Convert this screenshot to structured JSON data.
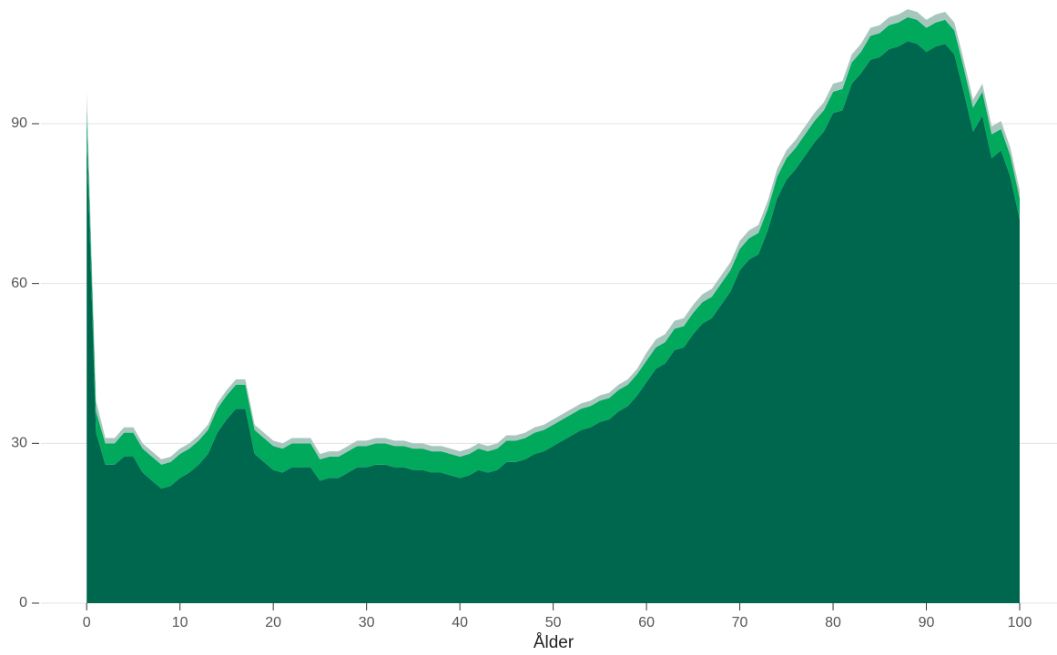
{
  "chart_data": {
    "type": "stacked_area",
    "x_label": "Ålder",
    "x": [
      0,
      1,
      2,
      3,
      4,
      5,
      6,
      7,
      8,
      9,
      10,
      11,
      12,
      13,
      14,
      15,
      16,
      17,
      18,
      19,
      20,
      21,
      22,
      23,
      24,
      25,
      26,
      27,
      28,
      29,
      30,
      31,
      32,
      33,
      34,
      35,
      36,
      37,
      38,
      39,
      40,
      41,
      42,
      43,
      44,
      45,
      46,
      47,
      48,
      49,
      50,
      51,
      52,
      53,
      54,
      55,
      56,
      57,
      58,
      59,
      60,
      61,
      62,
      63,
      64,
      65,
      66,
      67,
      68,
      69,
      70,
      71,
      72,
      73,
      74,
      75,
      76,
      77,
      78,
      79,
      80,
      81,
      82,
      83,
      84,
      85,
      86,
      87,
      88,
      89,
      90,
      91,
      92,
      93,
      94,
      95,
      96,
      97,
      98,
      99,
      100
    ],
    "series": [
      {
        "color": "#00674f",
        "values": [
          88,
          32,
          26,
          26,
          27.5,
          27.5,
          24.5,
          23,
          21.5,
          22,
          23.5,
          24.5,
          26,
          28,
          32,
          34.5,
          36.5,
          36.5,
          28,
          26.5,
          25,
          24.5,
          25.5,
          25.5,
          25.5,
          23,
          23.5,
          23.5,
          24.5,
          25.5,
          25.5,
          26,
          26,
          25.5,
          25.5,
          25,
          25,
          24.5,
          24.5,
          24,
          23.5,
          24,
          25,
          24.5,
          25,
          26.5,
          26.5,
          27,
          28,
          28.5,
          29.5,
          30.5,
          31.5,
          32.5,
          33,
          34,
          34.5,
          36,
          37,
          39,
          41.5,
          44,
          45,
          47.5,
          48,
          50.5,
          52.5,
          53.5,
          56,
          58.5,
          62.5,
          64.5,
          65.5,
          70,
          76,
          79.5,
          81.5,
          84,
          86.5,
          88.5,
          92,
          92.5,
          97.5,
          99.5,
          102,
          102.5,
          104,
          104.5,
          105.5,
          105,
          103.5,
          104.5,
          105,
          103,
          96,
          88.5,
          91.5,
          83.5,
          85,
          80,
          72
        ]
      },
      {
        "color": "#00a95c",
        "values": [
          5,
          4,
          4,
          4,
          4.5,
          4.5,
          4.5,
          4.5,
          4.5,
          4.5,
          4.5,
          4.5,
          4.5,
          4.5,
          4.5,
          4.5,
          4.5,
          4.5,
          4.5,
          4.5,
          4.5,
          4.5,
          4.5,
          4.5,
          4.5,
          4,
          4,
          4,
          4,
          4,
          4,
          4,
          4,
          4,
          4,
          4,
          4,
          4,
          4,
          4,
          4,
          4,
          4,
          4,
          4,
          4,
          4,
          4,
          4,
          4,
          4,
          4,
          4,
          4,
          4,
          4,
          4,
          4,
          4,
          4,
          4,
          4,
          4,
          4,
          4,
          4,
          4,
          4,
          4,
          4,
          4,
          4,
          4,
          4,
          4,
          4,
          4,
          4,
          4,
          4,
          4,
          4,
          4,
          4,
          4.5,
          4.5,
          4.5,
          4.5,
          4.5,
          4.5,
          4.5,
          4.5,
          4.5,
          4.5,
          4.5,
          4.5,
          4.5,
          4.5,
          4,
          4,
          4
        ]
      },
      {
        "color": "#a7c7be",
        "values": [
          3,
          2,
          1,
          1,
          1,
          1,
          1,
          1,
          1,
          1,
          1,
          1,
          1,
          1,
          1,
          1,
          1,
          1,
          1,
          1,
          1,
          1,
          1,
          1,
          1,
          1,
          1,
          1,
          1,
          1,
          1,
          1,
          1,
          1,
          1,
          1,
          1,
          1,
          1,
          1,
          1,
          1,
          1,
          1,
          1,
          1,
          1,
          1,
          1,
          1,
          1,
          1,
          1,
          1,
          1,
          1,
          1,
          1,
          1,
          1,
          1.5,
          1.5,
          1.5,
          1.5,
          1.5,
          1.5,
          1.5,
          1.5,
          1.5,
          1.5,
          1.5,
          1.5,
          1.5,
          1.5,
          1.5,
          1.5,
          1.5,
          1.5,
          1.5,
          1.5,
          1.5,
          1.5,
          1.5,
          1.5,
          1.5,
          1.5,
          1.5,
          1.5,
          1.5,
          1.5,
          1.5,
          1.5,
          1.5,
          1.5,
          1.5,
          1.5,
          1.5,
          1.5,
          1.5,
          1.5,
          1.5
        ]
      }
    ],
    "xlim": [
      -4.9,
      104
    ],
    "xticks": [
      0,
      10,
      20,
      30,
      40,
      50,
      60,
      70,
      80,
      90,
      100
    ],
    "ylim": [
      0,
      111
    ],
    "yticks": [
      0,
      30,
      60,
      90
    ],
    "grid": true
  }
}
